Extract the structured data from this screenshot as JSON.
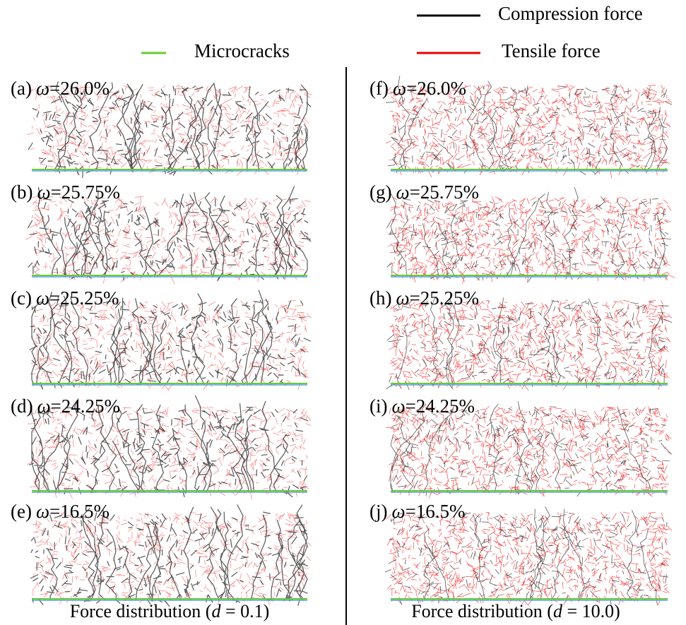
{
  "legend": {
    "compression": "Compression force",
    "tensile": "Tensile force",
    "microcracks": "Microcracks"
  },
  "panels": [
    {
      "label": "(a)",
      "symbol": "ω",
      "value": "=26.0%"
    },
    {
      "label": "(b)",
      "symbol": "ω",
      "value": "=25.75%"
    },
    {
      "label": "(c)",
      "symbol": "ω",
      "value": "=25.25%"
    },
    {
      "label": "(d)",
      "symbol": "ω",
      "value": "=24.25%"
    },
    {
      "label": "(e)",
      "symbol": "ω",
      "value": "=16.5%"
    },
    {
      "label": "(f)",
      "symbol": "ω",
      "value": "=26.0%"
    },
    {
      "label": "(g)",
      "symbol": "ω",
      "value": "=25.75%"
    },
    {
      "label": "(h)",
      "symbol": "ω",
      "value": "=25.25%"
    },
    {
      "label": "(i)",
      "symbol": "ω",
      "value": "=24.25%"
    },
    {
      "label": "(j)",
      "symbol": "ω",
      "value": "=16.5%"
    }
  ],
  "captions": [
    {
      "prefix": "Force distribution (",
      "variable": "d",
      "suffix": " = 0.1)"
    },
    {
      "prefix": "Force distribution (",
      "variable": "d",
      "suffix": " = 10.0)"
    }
  ]
}
